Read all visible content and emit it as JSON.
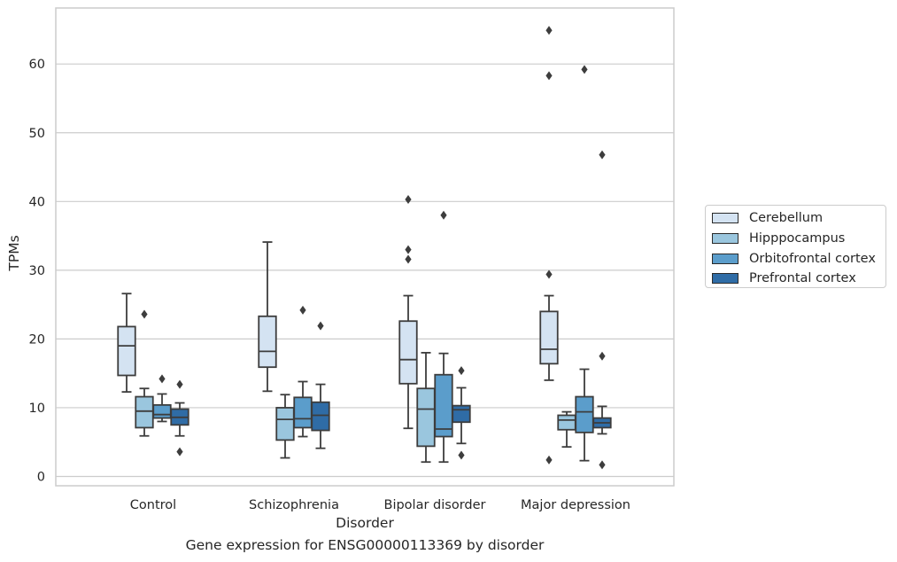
{
  "caption": "Gene expression for ENSG00000113369 by disorder",
  "chart_data": {
    "type": "boxplot",
    "title": "",
    "xlabel": "Disorder",
    "ylabel": "TPMs",
    "categories": [
      "Control",
      "Schizophrenia",
      "Bipolar disorder",
      "Major depression"
    ],
    "yticks": [
      "0",
      "10",
      "20",
      "30",
      "40",
      "50",
      "60"
    ],
    "ylim": [
      -1.4,
      68.2
    ],
    "grid": "horizontal",
    "legend_position": "right",
    "series": [
      {
        "name": "Cerebellum",
        "color": "#d4e3f2",
        "boxes": [
          {
            "whislo": 12.3,
            "q1": 14.7,
            "med": 19.0,
            "q3": 21.8,
            "whishi": 26.6,
            "fliers": []
          },
          {
            "whislo": 12.4,
            "q1": 15.9,
            "med": 18.2,
            "q3": 23.3,
            "whishi": 34.1,
            "fliers": []
          },
          {
            "whislo": 7.0,
            "q1": 13.5,
            "med": 17.0,
            "q3": 22.6,
            "whishi": 26.3,
            "fliers": [
              31.6,
              33.0,
              40.3
            ]
          },
          {
            "whislo": 14.0,
            "q1": 16.4,
            "med": 18.5,
            "q3": 24.0,
            "whishi": 26.3,
            "fliers": [
              2.4,
              29.4,
              58.3,
              64.9
            ]
          }
        ]
      },
      {
        "name": "Hipppocampus",
        "color": "#9ac6de",
        "boxes": [
          {
            "whislo": 5.9,
            "q1": 7.1,
            "med": 9.5,
            "q3": 11.6,
            "whishi": 12.8,
            "fliers": [
              23.6
            ]
          },
          {
            "whislo": 2.7,
            "q1": 5.3,
            "med": 8.3,
            "q3": 10.0,
            "whishi": 11.9,
            "fliers": []
          },
          {
            "whislo": 2.1,
            "q1": 4.4,
            "med": 9.8,
            "q3": 12.8,
            "whishi": 18.0,
            "fliers": []
          },
          {
            "whislo": 4.3,
            "q1": 6.8,
            "med": 8.2,
            "q3": 8.9,
            "whishi": 9.4,
            "fliers": []
          }
        ]
      },
      {
        "name": "Orbitofrontal cortex",
        "color": "#5b9dcb",
        "boxes": [
          {
            "whislo": 8.0,
            "q1": 8.5,
            "med": 9.0,
            "q3": 10.4,
            "whishi": 12.0,
            "fliers": [
              14.2
            ]
          },
          {
            "whislo": 5.8,
            "q1": 7.1,
            "med": 8.4,
            "q3": 11.5,
            "whishi": 13.8,
            "fliers": [
              24.2
            ]
          },
          {
            "whislo": 2.1,
            "q1": 5.8,
            "med": 6.9,
            "q3": 14.8,
            "whishi": 17.9,
            "fliers": [
              38.0
            ]
          },
          {
            "whislo": 2.3,
            "q1": 6.4,
            "med": 9.4,
            "q3": 11.6,
            "whishi": 15.6,
            "fliers": [
              59.2
            ]
          }
        ]
      },
      {
        "name": "Prefrontal cortex",
        "color": "#2f6ca6",
        "boxes": [
          {
            "whislo": 5.9,
            "q1": 7.5,
            "med": 8.6,
            "q3": 9.8,
            "whishi": 10.7,
            "fliers": [
              3.6,
              13.4
            ]
          },
          {
            "whislo": 4.1,
            "q1": 6.7,
            "med": 8.9,
            "q3": 10.8,
            "whishi": 13.4,
            "fliers": [
              21.9
            ]
          },
          {
            "whislo": 4.8,
            "q1": 7.9,
            "med": 9.7,
            "q3": 10.3,
            "whishi": 12.9,
            "fliers": [
              3.1,
              15.4
            ]
          },
          {
            "whislo": 6.2,
            "q1": 7.1,
            "med": 7.8,
            "q3": 8.5,
            "whishi": 10.2,
            "fliers": [
              1.7,
              17.5,
              46.8
            ]
          }
        ]
      }
    ]
  }
}
